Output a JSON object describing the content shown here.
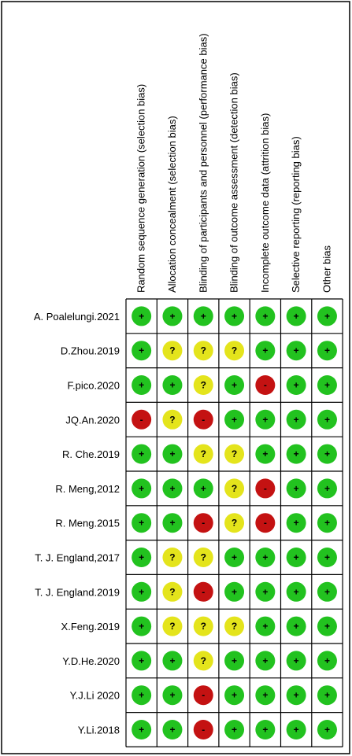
{
  "columns": [
    "Random sequence generation (selection bias)",
    "Allocation concealment (selection bias)",
    "Blinding of participants and personnel (performance bias)",
    "Blinding of outcome assessment (detection bias)",
    "Incomplete outcome data (attrition bias)",
    "Selective reporting (reporting bias)",
    "Other bias"
  ],
  "symbol_colors": {
    "+": "#22c21f",
    "?": "#e4e41c",
    "-": "#c41212"
  },
  "rows": [
    {
      "study": "A. Poalelungi.2021",
      "judgments": [
        "+",
        "+",
        "+",
        "+",
        "+",
        "+",
        "+"
      ]
    },
    {
      "study": "D.Zhou.2019",
      "judgments": [
        "+",
        "?",
        "?",
        "?",
        "+",
        "+",
        "+"
      ]
    },
    {
      "study": "F.pico.2020",
      "judgments": [
        "+",
        "+",
        "?",
        "+",
        "-",
        "+",
        "+"
      ]
    },
    {
      "study": "JQ.An.2020",
      "judgments": [
        "-",
        "?",
        "-",
        "+",
        "+",
        "+",
        "+"
      ]
    },
    {
      "study": "R. Che.2019",
      "judgments": [
        "+",
        "+",
        "?",
        "?",
        "+",
        "+",
        "+"
      ]
    },
    {
      "study": "R. Meng,2012",
      "judgments": [
        "+",
        "+",
        "+",
        "?",
        "-",
        "+",
        "+"
      ]
    },
    {
      "study": "R. Meng.2015",
      "judgments": [
        "+",
        "+",
        "-",
        "?",
        "-",
        "+",
        "+"
      ]
    },
    {
      "study": "T. J. England,2017",
      "judgments": [
        "+",
        "?",
        "?",
        "+",
        "+",
        "+",
        "+"
      ]
    },
    {
      "study": "T. J. England.2019",
      "judgments": [
        "+",
        "?",
        "-",
        "+",
        "+",
        "+",
        "+"
      ]
    },
    {
      "study": "X.Feng.2019",
      "judgments": [
        "+",
        "?",
        "?",
        "?",
        "+",
        "+",
        "+"
      ]
    },
    {
      "study": "Y.D.He.2020",
      "judgments": [
        "+",
        "+",
        "?",
        "+",
        "+",
        "+",
        "+"
      ]
    },
    {
      "study": "Y.J.Li 2020",
      "judgments": [
        "+",
        "+",
        "-",
        "+",
        "+",
        "+",
        "+"
      ]
    },
    {
      "study": "Y.Li.2018",
      "judgments": [
        "+",
        "+",
        "-",
        "+",
        "+",
        "+",
        "+"
      ]
    }
  ]
}
